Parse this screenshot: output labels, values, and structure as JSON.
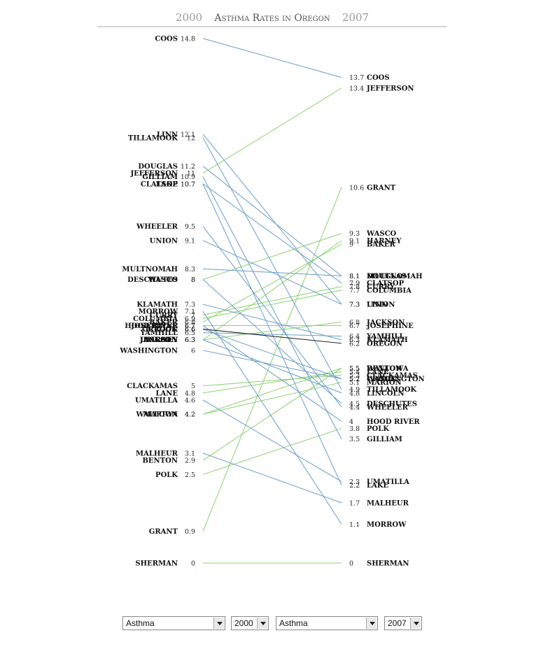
{
  "title": {
    "year_left": "2000",
    "main": "Asthma Rates in Oregon",
    "year_right": "2007"
  },
  "colors": {
    "increase": "#8bd26e",
    "decrease": "#6a9cc8",
    "state": "#111111"
  },
  "chart_data": {
    "type": "slope",
    "title": "Asthma Rates in Oregon",
    "start_label": "2000",
    "end_label": "2007",
    "counties": [
      {
        "name": "COOS",
        "v2000": 14.8,
        "v2007": 13.7
      },
      {
        "name": "JEFFERSON",
        "v2000": 11,
        "v2007": 13.4
      },
      {
        "name": "GRANT",
        "v2000": 0.9,
        "v2007": 10.6
      },
      {
        "name": "WASCO",
        "v2000": 8,
        "v2007": 9.3
      },
      {
        "name": "HARNEY",
        "v2000": 6.3,
        "v2007": 9.1
      },
      {
        "name": "BAKER",
        "v2000": 6.8,
        "v2007": 9
      },
      {
        "name": "MULTNOMAH",
        "v2000": 8.3,
        "v2007": 8.1
      },
      {
        "name": "DOUGLAS",
        "v2000": 11.2,
        "v2007": 8.1
      },
      {
        "name": "CLATSOP",
        "v2000": 10.7,
        "v2007": 7.9
      },
      {
        "name": "CURRY",
        "v2000": 7,
        "v2007": 7.8
      },
      {
        "name": "COLUMBIA",
        "v2000": 6.9,
        "v2007": 7.7
      },
      {
        "name": "UNION",
        "v2000": 9.1,
        "v2007": 7.3
      },
      {
        "name": "LINN",
        "v2000": 12.1,
        "v2007": 7.3
      },
      {
        "name": "JACKSON",
        "v2000": 6.3,
        "v2007": 6.8
      },
      {
        "name": "JOSEPHINE",
        "v2000": 6.7,
        "v2007": 6.7
      },
      {
        "name": "YAMHILL",
        "v2000": 6.5,
        "v2007": 6.4
      },
      {
        "name": "KLAMATH",
        "v2000": 7.3,
        "v2007": 6.3
      },
      {
        "name": "OREGON",
        "v2000": 6.6,
        "v2007": 6.2,
        "state": true
      },
      {
        "name": "WALLOWA",
        "v2000": 4.2,
        "v2007": 5.5
      },
      {
        "name": "BENTON",
        "v2000": 2.9,
        "v2007": 5.5
      },
      {
        "name": "LANE",
        "v2000": 4.8,
        "v2007": 5.4
      },
      {
        "name": "CLACKAMAS",
        "v2000": 5,
        "v2007": 5.3
      },
      {
        "name": "WASHINGTON",
        "v2000": 6,
        "v2007": 5.2
      },
      {
        "name": "CROOK",
        "v2000": 6.6,
        "v2007": 5.2
      },
      {
        "name": "MARION",
        "v2000": 4.2,
        "v2007": 5.1
      },
      {
        "name": "TILLAMOOK",
        "v2000": 12,
        "v2007": 4.9
      },
      {
        "name": "LINCOLN",
        "v2000": 6.3,
        "v2007": 4.8
      },
      {
        "name": "DESCHUTES",
        "v2000": 8,
        "v2007": 4.5
      },
      {
        "name": "WHEELER",
        "v2000": 9.5,
        "v2007": 4.4
      },
      {
        "name": "HOOD RIVER",
        "v2000": 6.7,
        "v2007": 4
      },
      {
        "name": "POLK",
        "v2000": 2.5,
        "v2007": 3.8
      },
      {
        "name": "GILLIAM",
        "v2000": 10.9,
        "v2007": 3.5
      },
      {
        "name": "UMATILLA",
        "v2000": 4.6,
        "v2007": 2.3
      },
      {
        "name": "LAKE",
        "v2000": 10.7,
        "v2007": 2.2
      },
      {
        "name": "MALHEUR",
        "v2000": 3.1,
        "v2007": 1.7
      },
      {
        "name": "MORROW",
        "v2000": 7.1,
        "v2007": 1.1
      },
      {
        "name": "SHERMAN",
        "v2000": 0,
        "v2007": 0
      }
    ]
  },
  "controls": {
    "left_measure": "Asthma",
    "left_year": "2000",
    "right_measure": "Asthma",
    "right_year": "2007"
  }
}
